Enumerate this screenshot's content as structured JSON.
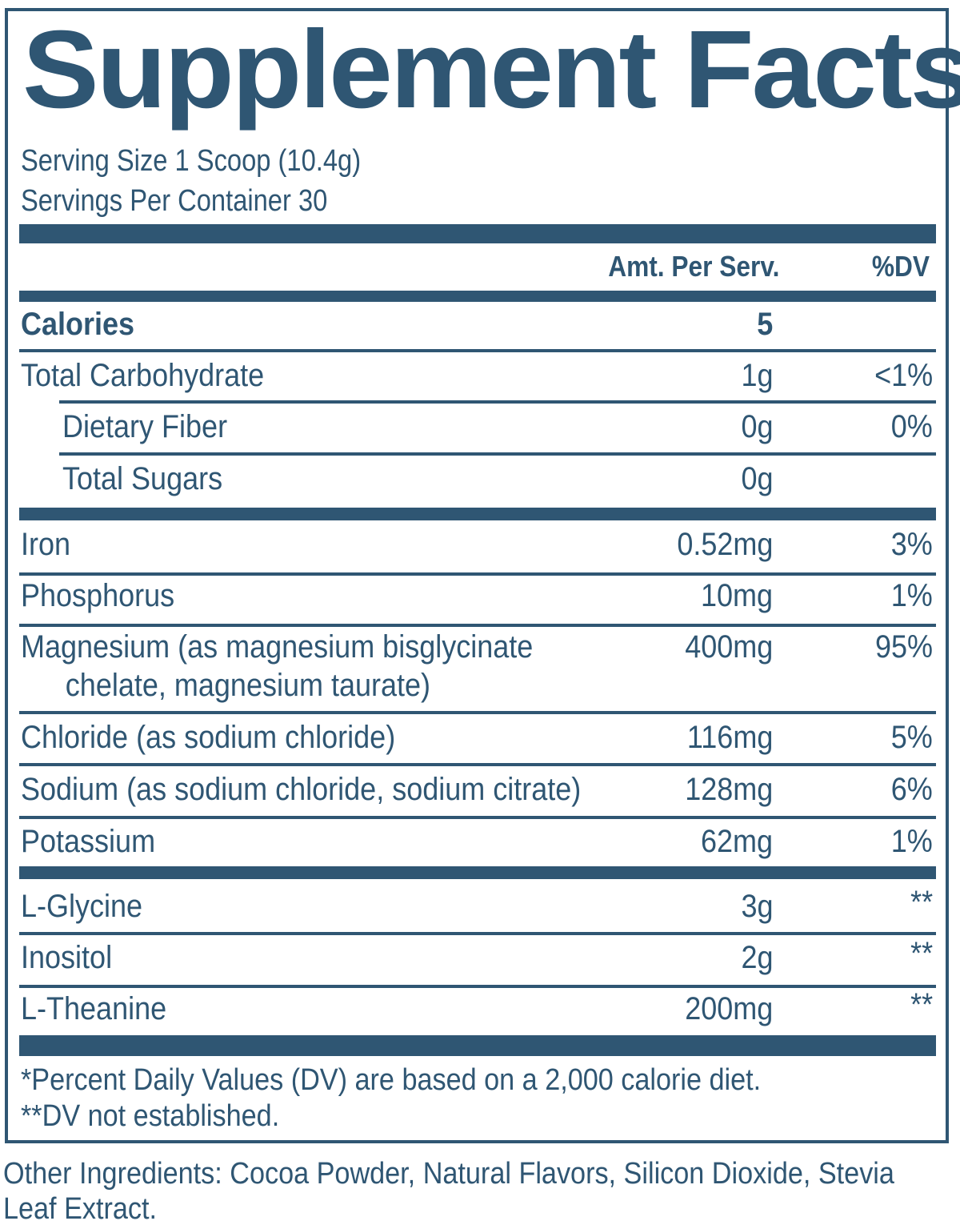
{
  "title": "Supplement Facts",
  "serving_size": "Serving Size 1 Scoop (10.4g)",
  "servings_per_container": "Servings Per Container 30",
  "columns": {
    "amount": "Amt. Per Serv.",
    "dv": "%DV"
  },
  "calories": {
    "label": "Calories",
    "amount": "5"
  },
  "carbs": [
    {
      "name": "Total Carbohydrate",
      "amount": "1g",
      "dv": "<1%"
    },
    {
      "name": "Dietary Fiber",
      "amount": "0g",
      "dv": "0%"
    },
    {
      "name": "Total Sugars",
      "amount": "0g",
      "dv": ""
    }
  ],
  "minerals": [
    {
      "name": "Iron",
      "amount": "0.52mg",
      "dv": "3%"
    },
    {
      "name": "Phosphorus",
      "amount": "10mg",
      "dv": "1%"
    },
    {
      "name": "Magnesium (as magnesium bisglycinate",
      "name_line2": "chelate, magnesium taurate)",
      "amount": "400mg",
      "dv": "95%"
    },
    {
      "name": "Chloride (as sodium chloride)",
      "amount": "116mg",
      "dv": "5%"
    },
    {
      "name": "Sodium (as sodium chloride, sodium citrate)",
      "amount": "128mg",
      "dv": "6%"
    },
    {
      "name": "Potassium",
      "amount": "62mg",
      "dv": "1%"
    }
  ],
  "others": [
    {
      "name": "L-Glycine",
      "amount": "3g",
      "dv": "**"
    },
    {
      "name": "Inositol",
      "amount": "2g",
      "dv": "**"
    },
    {
      "name": "L-Theanine",
      "amount": "200mg",
      "dv": "**"
    }
  ],
  "footnotes": [
    "*Percent Daily Values (DV) are based on a 2,000 calorie diet.",
    "**DV not established."
  ],
  "other_ingredients": "Other Ingredients: Cocoa Powder, Natural Flavors, Silicon Dioxide, Stevia Leaf Extract.",
  "colors": {
    "ink": "#2f5673",
    "background": "#ffffff"
  }
}
